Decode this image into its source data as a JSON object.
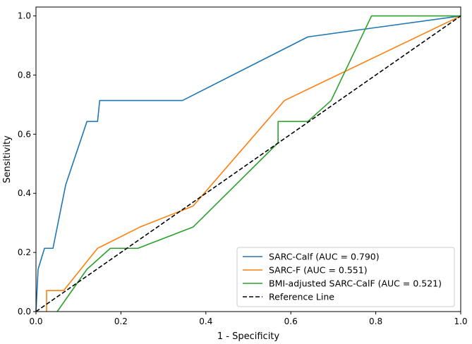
{
  "chart_data": {
    "type": "line",
    "title": "",
    "xlabel": "1 - Specificity",
    "ylabel": "Sensitivity",
    "xlim": [
      0,
      1
    ],
    "ylim": [
      0,
      1.03
    ],
    "x_ticks": [
      "0.0",
      "0.2",
      "0.4",
      "0.6",
      "0.8",
      "1.0"
    ],
    "y_ticks": [
      "0.0",
      "0.2",
      "0.4",
      "0.6",
      "0.8",
      "1.0"
    ],
    "grid": false,
    "legend_position": "bottom-right",
    "series": [
      {
        "name": "SARC-Calf (AUC = 0.790)",
        "color": "#1f77b4",
        "dash": "solid",
        "x": [
          0,
          0.005,
          0.02,
          0.04,
          0.07,
          0.12,
          0.145,
          0.15,
          0.345,
          0.64,
          1.0
        ],
        "y": [
          0,
          0.143,
          0.214,
          0.214,
          0.429,
          0.643,
          0.643,
          0.714,
          0.714,
          0.929,
          1.0
        ]
      },
      {
        "name": "SARC-F (AUC = 0.551)",
        "color": "#ff7f0e",
        "dash": "solid",
        "x": [
          0.025,
          0.025,
          0.065,
          0.145,
          0.245,
          0.37,
          0.585,
          1.0
        ],
        "y": [
          0,
          0.071,
          0.071,
          0.214,
          0.286,
          0.357,
          0.714,
          1.0
        ]
      },
      {
        "name": "BMI-adjusted SARC-CalF (AUC = 0.521)",
        "color": "#2ca02c",
        "dash": "solid",
        "x": [
          0.05,
          0.12,
          0.175,
          0.24,
          0.37,
          0.57,
          0.57,
          0.64,
          0.695,
          0.79,
          1.0
        ],
        "y": [
          0,
          0.143,
          0.214,
          0.214,
          0.286,
          0.571,
          0.643,
          0.643,
          0.714,
          1.0,
          1.0
        ]
      },
      {
        "name": "Reference Line",
        "color": "#000000",
        "dash": "dashed",
        "x": [
          0,
          1
        ],
        "y": [
          0,
          1
        ]
      }
    ]
  }
}
